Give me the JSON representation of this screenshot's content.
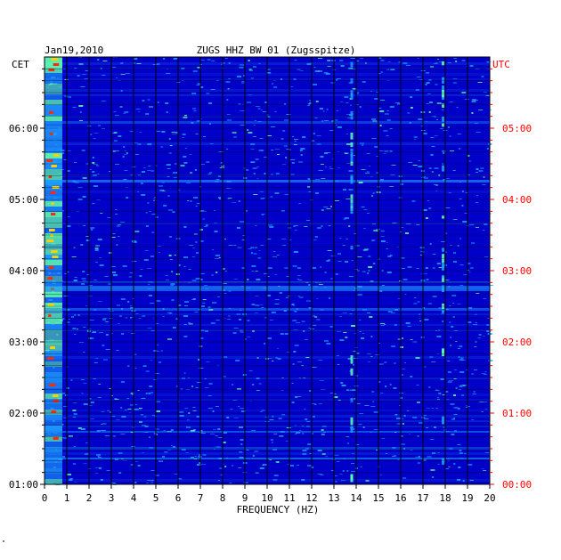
{
  "chart_data": {
    "type": "heatmap",
    "title": "ZUGS HHZ BW 01 (Zugsspitze)",
    "date": "Jan19,2010",
    "left_timezone": "CET",
    "right_timezone": "UTC",
    "xlabel": "FREQUENCY (HZ)",
    "xlim": [
      0,
      20
    ],
    "x_ticks": [
      "0",
      "1",
      "2",
      "3",
      "4",
      "5",
      "6",
      "7",
      "8",
      "9",
      "10",
      "11",
      "12",
      "13",
      "14",
      "15",
      "16",
      "17",
      "18",
      "19",
      "20"
    ],
    "y_ticks_left": [
      "06:00",
      "05:00",
      "04:00",
      "03:00",
      "02:00",
      "01:00"
    ],
    "y_ticks_right": [
      "05:00",
      "04:00",
      "03:00",
      "02:00",
      "01:00",
      "00:00"
    ],
    "y_range_cet": [
      "01:00",
      "07:00"
    ],
    "colors": {
      "background": "#0000c8",
      "low": "#0a2ad8",
      "mid": "#1ea0ff",
      "high": "#60ffb0",
      "peak": "#ff2a00",
      "grid": "#000000",
      "utc_label": "#ff0000"
    },
    "notable_features": [
      {
        "label": "low-frequency energy",
        "freq_hz": [
          0,
          0.8
        ]
      },
      {
        "label": "spectral line",
        "freq_hz": 13.8
      },
      {
        "label": "spectral line",
        "freq_hz": 17.9
      },
      {
        "label": "broadband burst",
        "time_cet": "03:45"
      }
    ]
  },
  "footer_mark": "\""
}
